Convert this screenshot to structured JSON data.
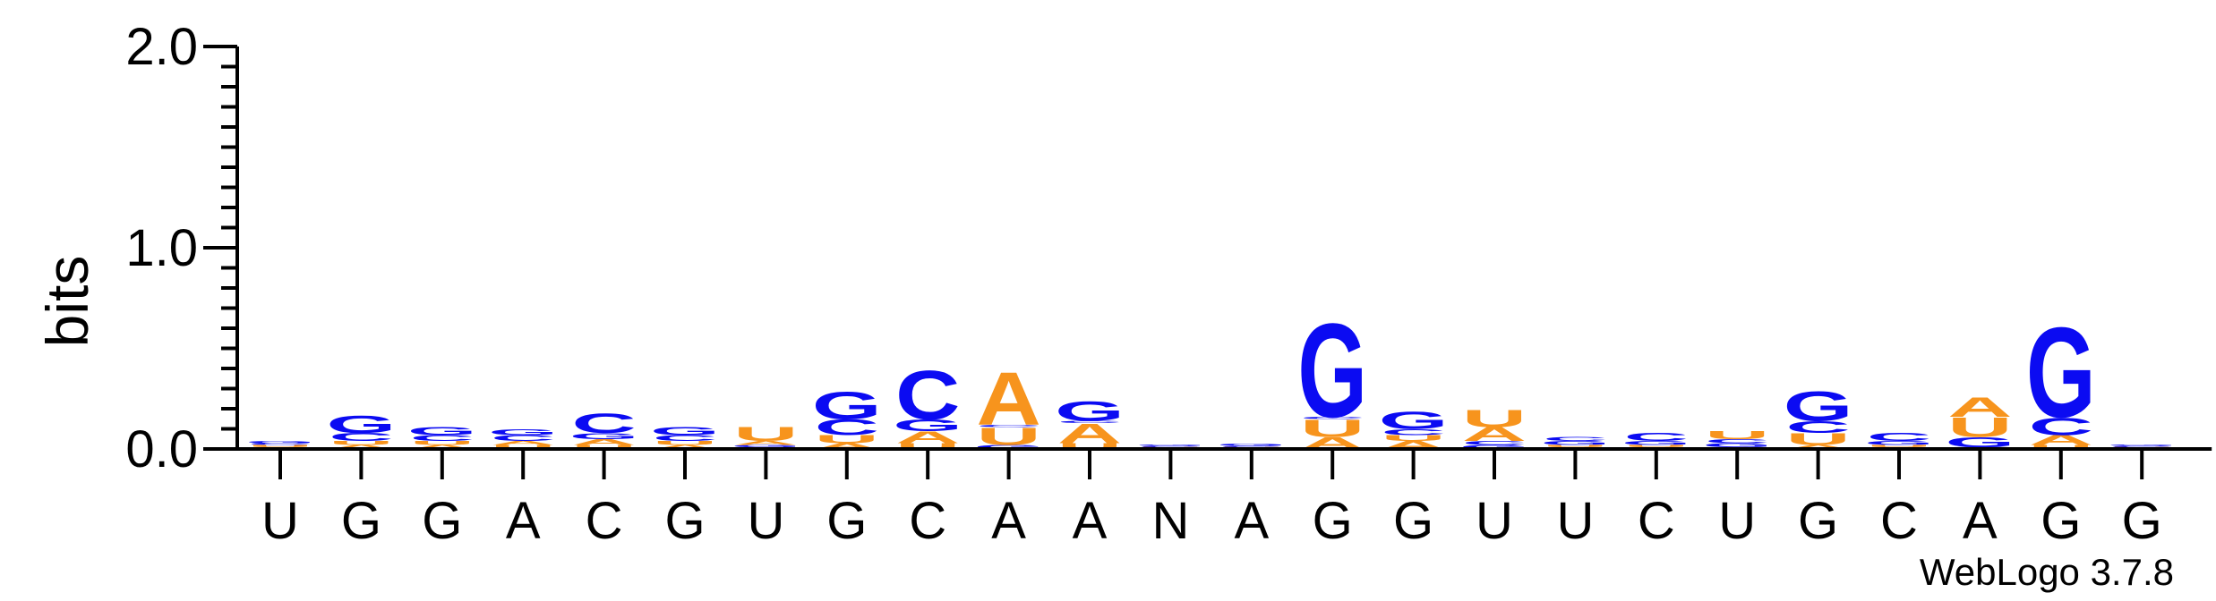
{
  "chart_data": {
    "type": "sequence-logo",
    "ylabel": "bits",
    "ylim": [
      0,
      2.0
    ],
    "yticks": [
      "0.0",
      "1.0",
      "2.0"
    ],
    "credit": "WebLogo 3.7.8",
    "colors": {
      "A": "#F7941D",
      "U": "#F7941D",
      "G": "#0B0BF2",
      "C": "#0B0BF2",
      "N": "#888888"
    },
    "positions": [
      {
        "label": "U",
        "stack": [
          {
            "letter": "A",
            "bits": 0.01
          },
          {
            "letter": "U",
            "bits": 0.01
          },
          {
            "letter": "C",
            "bits": 0.01
          },
          {
            "letter": "G",
            "bits": 0.01
          }
        ]
      },
      {
        "label": "G",
        "stack": [
          {
            "letter": "A",
            "bits": 0.02
          },
          {
            "letter": "U",
            "bits": 0.02
          },
          {
            "letter": "C",
            "bits": 0.04
          },
          {
            "letter": "G",
            "bits": 0.09
          }
        ]
      },
      {
        "label": "G",
        "stack": [
          {
            "letter": "A",
            "bits": 0.02
          },
          {
            "letter": "U",
            "bits": 0.02
          },
          {
            "letter": "C",
            "bits": 0.03
          },
          {
            "letter": "G",
            "bits": 0.04
          }
        ]
      },
      {
        "label": "A",
        "stack": [
          {
            "letter": "U",
            "bits": 0.02
          },
          {
            "letter": "A",
            "bits": 0.02
          },
          {
            "letter": "C",
            "bits": 0.03
          },
          {
            "letter": "G",
            "bits": 0.03
          }
        ]
      },
      {
        "label": "C",
        "stack": [
          {
            "letter": "U",
            "bits": 0.02
          },
          {
            "letter": "A",
            "bits": 0.03
          },
          {
            "letter": "G",
            "bits": 0.03
          },
          {
            "letter": "C",
            "bits": 0.1
          }
        ]
      },
      {
        "label": "G",
        "stack": [
          {
            "letter": "A",
            "bits": 0.02
          },
          {
            "letter": "U",
            "bits": 0.02
          },
          {
            "letter": "C",
            "bits": 0.03
          },
          {
            "letter": "G",
            "bits": 0.04
          }
        ]
      },
      {
        "label": "U",
        "stack": [
          {
            "letter": "C",
            "bits": 0.01
          },
          {
            "letter": "G",
            "bits": 0.01
          },
          {
            "letter": "A",
            "bits": 0.02
          },
          {
            "letter": "U",
            "bits": 0.07
          }
        ]
      },
      {
        "label": "G",
        "stack": [
          {
            "letter": "A",
            "bits": 0.03
          },
          {
            "letter": "U",
            "bits": 0.04
          },
          {
            "letter": "C",
            "bits": 0.08
          },
          {
            "letter": "G",
            "bits": 0.14
          }
        ]
      },
      {
        "label": "C",
        "stack": [
          {
            "letter": "U",
            "bits": 0.03
          },
          {
            "letter": "A",
            "bits": 0.06
          },
          {
            "letter": "G",
            "bits": 0.06
          },
          {
            "letter": "C",
            "bits": 0.25
          }
        ]
      },
      {
        "label": "A",
        "stack": [
          {
            "letter": "G",
            "bits": 0.02
          },
          {
            "letter": "U",
            "bits": 0.09
          },
          {
            "letter": "C",
            "bits": 0.01
          },
          {
            "letter": "A",
            "bits": 0.27
          }
        ]
      },
      {
        "label": "A",
        "stack": [
          {
            "letter": "U",
            "bits": 0.03
          },
          {
            "letter": "A",
            "bits": 0.1
          },
          {
            "letter": "C",
            "bits": 0.01
          },
          {
            "letter": "G",
            "bits": 0.1
          }
        ]
      },
      {
        "label": "N",
        "stack": [
          {
            "letter": "A",
            "bits": 0.005
          },
          {
            "letter": "U",
            "bits": 0.005
          },
          {
            "letter": "C",
            "bits": 0.005
          },
          {
            "letter": "G",
            "bits": 0.005
          }
        ]
      },
      {
        "label": "A",
        "stack": [
          {
            "letter": "A",
            "bits": 0.005
          },
          {
            "letter": "U",
            "bits": 0.005
          },
          {
            "letter": "C",
            "bits": 0.005
          },
          {
            "letter": "G",
            "bits": 0.01
          }
        ]
      },
      {
        "label": "G",
        "stack": [
          {
            "letter": "A",
            "bits": 0.06
          },
          {
            "letter": "U",
            "bits": 0.09
          },
          {
            "letter": "C",
            "bits": 0.01
          },
          {
            "letter": "G",
            "bits": 0.48
          }
        ]
      },
      {
        "label": "G",
        "stack": [
          {
            "letter": "A",
            "bits": 0.04
          },
          {
            "letter": "U",
            "bits": 0.03
          },
          {
            "letter": "C",
            "bits": 0.03
          },
          {
            "letter": "G",
            "bits": 0.09
          }
        ]
      },
      {
        "label": "U",
        "stack": [
          {
            "letter": "G",
            "bits": 0.02
          },
          {
            "letter": "C",
            "bits": 0.02
          },
          {
            "letter": "A",
            "bits": 0.07
          },
          {
            "letter": "U",
            "bits": 0.09
          }
        ]
      },
      {
        "label": "U",
        "stack": [
          {
            "letter": "A",
            "bits": 0.01
          },
          {
            "letter": "U",
            "bits": 0.01
          },
          {
            "letter": "G",
            "bits": 0.02
          },
          {
            "letter": "C",
            "bits": 0.02
          }
        ]
      },
      {
        "label": "C",
        "stack": [
          {
            "letter": "A",
            "bits": 0.01
          },
          {
            "letter": "U",
            "bits": 0.01
          },
          {
            "letter": "G",
            "bits": 0.02
          },
          {
            "letter": "C",
            "bits": 0.04
          }
        ]
      },
      {
        "label": "U",
        "stack": [
          {
            "letter": "A",
            "bits": 0.01
          },
          {
            "letter": "G",
            "bits": 0.02
          },
          {
            "letter": "C",
            "bits": 0.02
          },
          {
            "letter": "U",
            "bits": 0.04
          }
        ]
      },
      {
        "label": "G",
        "stack": [
          {
            "letter": "A",
            "bits": 0.02
          },
          {
            "letter": "U",
            "bits": 0.06
          },
          {
            "letter": "C",
            "bits": 0.06
          },
          {
            "letter": "G",
            "bits": 0.15
          }
        ]
      },
      {
        "label": "C",
        "stack": [
          {
            "letter": "A",
            "bits": 0.01
          },
          {
            "letter": "U",
            "bits": 0.01
          },
          {
            "letter": "G",
            "bits": 0.02
          },
          {
            "letter": "C",
            "bits": 0.04
          }
        ]
      },
      {
        "label": "A",
        "stack": [
          {
            "letter": "C",
            "bits": 0.01
          },
          {
            "letter": "G",
            "bits": 0.05
          },
          {
            "letter": "U",
            "bits": 0.1
          },
          {
            "letter": "A",
            "bits": 0.1
          }
        ]
      },
      {
        "label": "G",
        "stack": [
          {
            "letter": "U",
            "bits": 0.02
          },
          {
            "letter": "A",
            "bits": 0.05
          },
          {
            "letter": "C",
            "bits": 0.09
          },
          {
            "letter": "G",
            "bits": 0.46
          }
        ]
      },
      {
        "label": "G",
        "stack": [
          {
            "letter": "A",
            "bits": 0.005
          },
          {
            "letter": "U",
            "bits": 0.005
          },
          {
            "letter": "C",
            "bits": 0.005
          },
          {
            "letter": "G",
            "bits": 0.005
          }
        ]
      }
    ]
  }
}
